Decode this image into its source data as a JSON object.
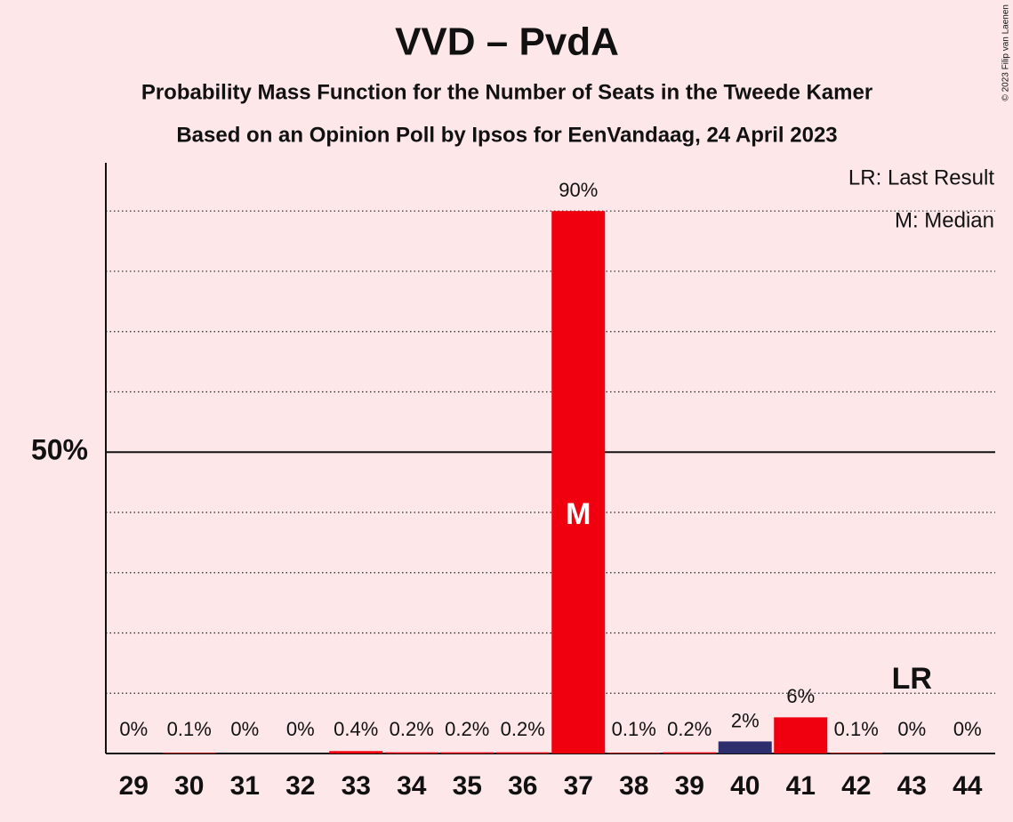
{
  "chart_data": {
    "type": "bar",
    "title": "VVD – PvdA",
    "subtitle": "Probability Mass Function for the Number of Seats in the Tweede Kamer",
    "subtitle2": "Based on an Opinion Poll by Ipsos for EenVandaag, 24 April 2023",
    "credit": "© 2023 Filip van Laenen",
    "legend": [
      "LR: Last Result",
      "M: Median"
    ],
    "categories": [
      "29",
      "30",
      "31",
      "32",
      "33",
      "34",
      "35",
      "36",
      "37",
      "38",
      "39",
      "40",
      "41",
      "42",
      "43",
      "44"
    ],
    "values": [
      0,
      0.1,
      0,
      0,
      0.4,
      0.2,
      0.2,
      0.2,
      90,
      0.1,
      0.2,
      2,
      6,
      0.1,
      0,
      0
    ],
    "value_labels": [
      "0%",
      "0.1%",
      "0%",
      "0%",
      "0.4%",
      "0.2%",
      "0.2%",
      "0.2%",
      "90%",
      "0.1%",
      "0.2%",
      "2%",
      "6%",
      "0.1%",
      "0%",
      "0%"
    ],
    "colors": [
      "#f0000e",
      "#f0000e",
      "#f0000e",
      "#f0000e",
      "#f0000e",
      "#f0000e",
      "#f0000e",
      "#f0000e",
      "#f0000e",
      "#f0000e",
      "#f0000e",
      "#2e2e6e",
      "#f0000e",
      "#f0000e",
      "#f0000e",
      "#f0000e"
    ],
    "annotations": [
      {
        "text": "M",
        "category": "37"
      },
      {
        "text": "LR",
        "category": "43"
      }
    ],
    "ylim": [
      0,
      98
    ],
    "yticks": [
      {
        "value": 50,
        "label": "50%"
      }
    ],
    "grid_lines": [
      10,
      20,
      30,
      40,
      60,
      70,
      80,
      90
    ]
  }
}
